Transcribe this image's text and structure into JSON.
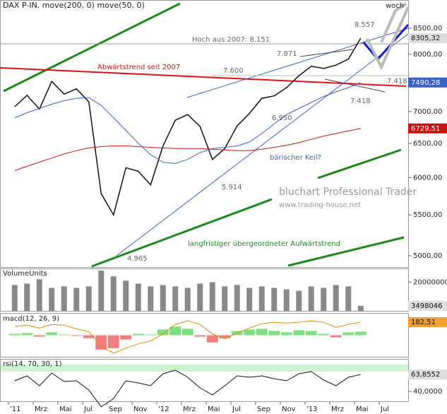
{
  "chart_data": {
    "type": "line",
    "title": "DAX P-IN. move(200, 0) move(50, 0)",
    "period": "woch",
    "log_scale": true,
    "x": [
      "2011-01",
      "2011-02",
      "2011-03",
      "2011-04",
      "2011-05",
      "2011-06",
      "2011-07",
      "2011-08",
      "2011-09",
      "2011-10",
      "2011-11",
      "2011-12",
      "2012-01",
      "2012-02",
      "2012-03",
      "2012-04",
      "2012-05",
      "2012-06",
      "2012-07",
      "2012-08",
      "2012-09",
      "2012-10",
      "2012-11",
      "2012-12",
      "2013-01",
      "2013-02",
      "2013-03",
      "2013-04",
      "2013-05"
    ],
    "xticks": [
      {
        "value": "2011-01",
        "label": "'11"
      },
      {
        "value": "2011-03",
        "label": "Mrz"
      },
      {
        "value": "2011-05",
        "label": "Mai"
      },
      {
        "value": "2011-07",
        "label": "Jul"
      },
      {
        "value": "2011-09",
        "label": "Sep"
      },
      {
        "value": "2011-11",
        "label": "Nov"
      },
      {
        "value": "2012-01",
        "label": "'12"
      },
      {
        "value": "2012-03",
        "label": "Mrz"
      },
      {
        "value": "2012-05",
        "label": "Mai"
      },
      {
        "value": "2012-07",
        "label": "Jul"
      },
      {
        "value": "2012-09",
        "label": "Sep"
      },
      {
        "value": "2012-11",
        "label": "Nov"
      },
      {
        "value": "2013-01",
        "label": "'13"
      },
      {
        "value": "2013-03",
        "label": "Mrz"
      },
      {
        "value": "2013-05",
        "label": "Mai"
      },
      {
        "value": "2013-07",
        "label": "Jul"
      }
    ],
    "ylim": [
      4870,
      9080
    ],
    "yticks": [
      {
        "value": 5000,
        "label": "5000,00"
      },
      {
        "value": 5500,
        "label": "5500,00"
      },
      {
        "value": 6000,
        "label": "6000,00"
      },
      {
        "value": 6500,
        "label": "6500,00"
      },
      {
        "value": 7000,
        "label": "7000,00"
      },
      {
        "value": 7500,
        "label": "7500,00"
      },
      {
        "value": 8000,
        "label": "8000,00"
      },
      {
        "value": 8500,
        "label": "8500,00"
      }
    ],
    "series": [
      {
        "name": "DAX P-IN.",
        "color": "#111111",
        "end_label": "8305,32",
        "values": [
          7080,
          7270,
          7040,
          7510,
          7290,
          7380,
          7160,
          5780,
          5500,
          6140,
          6090,
          5900,
          6460,
          6860,
          6950,
          6760,
          6260,
          6420,
          6770,
          6970,
          7220,
          7260,
          7400,
          7610,
          7780,
          7740,
          7800,
          7910,
          8305.32
        ]
      },
      {
        "name": "move(50, 0)",
        "color": "#3a62c8",
        "end_label": "7490,28",
        "values": [
          6900,
          6980,
          7050,
          7120,
          7180,
          7220,
          7230,
          7100,
          6900,
          6700,
          6500,
          6330,
          6220,
          6200,
          6260,
          6360,
          6420,
          6440,
          6460,
          6520,
          6650,
          6800,
          6950,
          7050,
          7150,
          7250,
          7330,
          7400,
          7490.28
        ]
      },
      {
        "name": "move(200, 0)",
        "color": "#cc1111",
        "end_label": "6729,51",
        "values": [
          6100,
          6160,
          6220,
          6280,
          6340,
          6390,
          6430,
          6450,
          6460,
          6460,
          6450,
          6440,
          6430,
          6420,
          6420,
          6420,
          6410,
          6400,
          6390,
          6390,
          6410,
          6440,
          6470,
          6510,
          6560,
          6610,
          6650,
          6690,
          6729.51
        ]
      }
    ],
    "annotations": [
      "8.557",
      "Hoch aus 2007: 8.151",
      "7.871",
      "Abwärtstrend seit 2007",
      "7.600",
      "7.418",
      "7.418",
      "6.950",
      "bärischer Keil?",
      "5.914",
      "langfristiger übergeordneter Aufwärtstrend",
      "4.965"
    ],
    "watermark": [
      "bluchart Professional Trader",
      "www.trading-house.net"
    ],
    "volume": {
      "title": "VolumeUnits",
      "color": "#888888",
      "ylim": [
        0,
        29000000
      ],
      "yticks": [
        20000000
      ],
      "end_label": "3498046",
      "values": [
        18000000,
        19000000,
        22000000,
        16000000,
        17000000,
        16000000,
        17000000,
        28000000,
        24000000,
        21000000,
        19000000,
        17000000,
        18000000,
        17000000,
        16000000,
        19000000,
        20000000,
        17000000,
        18000000,
        16000000,
        17000000,
        16000000,
        15000000,
        14000000,
        17000000,
        16000000,
        18000000,
        17000000,
        3498046
      ]
    },
    "macd": {
      "title": "macd(12, 26, 9)",
      "ylim": [
        -300,
        300
      ],
      "end_label": "182,51",
      "histogram": [
        20,
        30,
        -20,
        40,
        10,
        -10,
        -40,
        -200,
        -180,
        -60,
        20,
        10,
        80,
        120,
        90,
        -20,
        -100,
        -40,
        60,
        80,
        90,
        60,
        40,
        70,
        60,
        20,
        -30,
        40,
        50
      ],
      "line": [
        120,
        140,
        100,
        150,
        140,
        90,
        50,
        -150,
        -250,
        -180,
        -120,
        -80,
        20,
        150,
        200,
        150,
        20,
        -50,
        30,
        100,
        160,
        180,
        170,
        180,
        200,
        180,
        110,
        150,
        182.51
      ]
    },
    "rsi": {
      "title": "rsi(14, 70, 30, 1)",
      "ylim": [
        25,
        85
      ],
      "yticks": [
        {
          "value": 40,
          "label": "40,0000"
        }
      ],
      "end_label": "63,8552",
      "values": [
        55,
        62,
        48,
        66,
        54,
        55,
        42,
        18,
        30,
        55,
        52,
        48,
        65,
        70,
        60,
        45,
        35,
        48,
        62,
        60,
        62,
        58,
        55,
        65,
        68,
        56,
        48,
        60,
        63.8552
      ]
    }
  }
}
